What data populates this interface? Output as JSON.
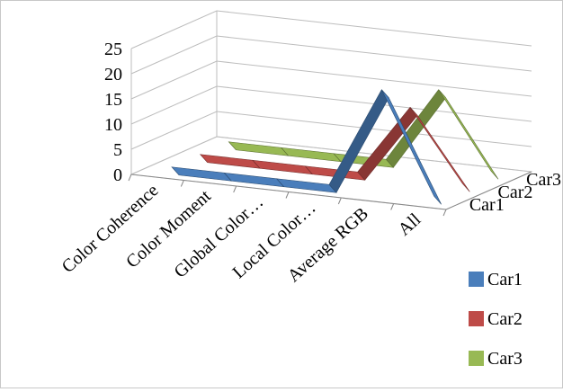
{
  "chart_data": {
    "type": "line",
    "style": "3d-ribbon",
    "categories": [
      "Color Coherence",
      "Color Moment",
      "Global Color…",
      "Local Color…",
      "Average RGB",
      "All"
    ],
    "series": [
      {
        "name": "Car1",
        "color": "#4a7ebb",
        "values": [
          0,
          0,
          0,
          0,
          20,
          0
        ]
      },
      {
        "name": "Car2",
        "color": "#be4b48",
        "values": [
          0,
          0,
          0,
          0,
          14,
          0
        ]
      },
      {
        "name": "Car3",
        "color": "#98b954",
        "values": [
          0,
          0,
          0,
          0,
          15,
          0
        ]
      }
    ],
    "y_ticks": [
      "0",
      "5",
      "10",
      "15",
      "20",
      "25"
    ],
    "ylim": [
      0,
      25
    ],
    "depth_labels": [
      "Car1",
      "Car2",
      "Car3"
    ],
    "legend_position": "right",
    "grid": true
  }
}
